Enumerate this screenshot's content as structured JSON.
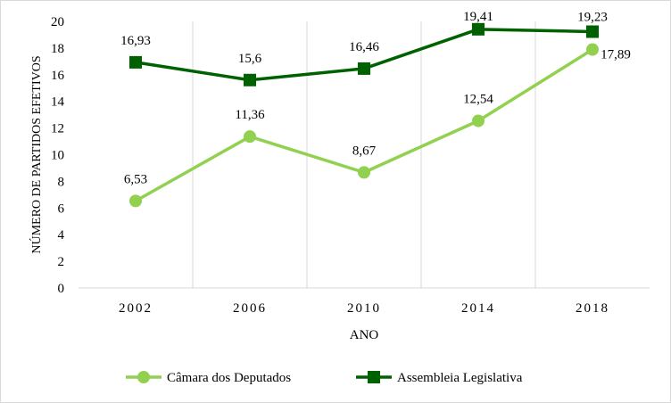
{
  "chart_data": {
    "type": "line",
    "categories": [
      "2002",
      "2006",
      "2010",
      "2014",
      "2018"
    ],
    "series": [
      {
        "name": "Câmara dos Deputados",
        "values": [
          6.53,
          11.36,
          8.67,
          12.54,
          17.89
        ],
        "labels": [
          "6,53",
          "11,36",
          "8,67",
          "12,54",
          "17,89"
        ],
        "color": "#92d050",
        "marker": "circle"
      },
      {
        "name": "Assembleia Legislativa",
        "values": [
          16.93,
          15.6,
          16.46,
          19.41,
          19.23
        ],
        "labels": [
          "16,93",
          "15,6",
          "16,46",
          "19,41",
          "19,23"
        ],
        "color": "#006100",
        "marker": "square"
      }
    ],
    "xlabel": "ANO",
    "ylabel": "NÚMERO DE PARTIDOS EFETIVOS",
    "ylim": [
      0,
      20
    ],
    "yticks": [
      "0",
      "2",
      "4",
      "6",
      "8",
      "10",
      "12",
      "14",
      "16",
      "18",
      "20"
    ],
    "grid": "vertical",
    "legend": "bottom"
  }
}
